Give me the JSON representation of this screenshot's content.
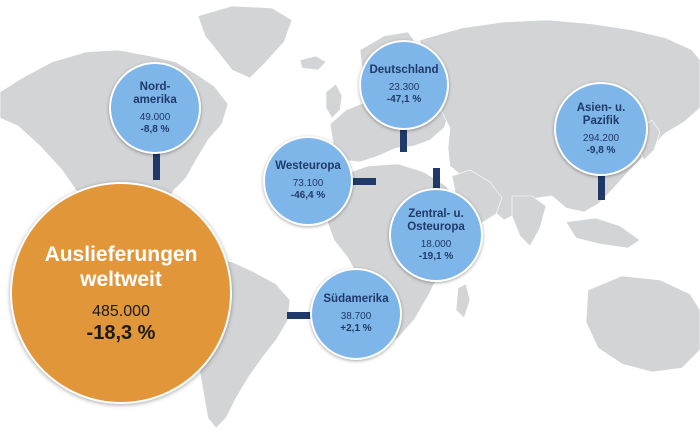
{
  "total": {
    "title": "Auslieferungen weltweit",
    "value": "485.000",
    "change": "-18,3 %"
  },
  "regions": [
    {
      "id": "nordamerika",
      "name": "Nord-\namerika",
      "value": "49.000",
      "change": "-8,8 %"
    },
    {
      "id": "deutschland",
      "name": "Deutschland",
      "value": "23.300",
      "change": "-47,1 %"
    },
    {
      "id": "asien-pazifik",
      "name": "Asien- u.\nPazifik",
      "value": "294.200",
      "change": "-9,8 %"
    },
    {
      "id": "westeuropa",
      "name": "Westeuropa",
      "value": "73.100",
      "change": "-46,4 %"
    },
    {
      "id": "zentral-osteuropa",
      "name": "Zentral- u.\nOsteuropa",
      "value": "18.000",
      "change": "-19,1 %"
    },
    {
      "id": "suedamerika",
      "name": "Südamerika",
      "value": "38.700",
      "change": "+2,1 %"
    }
  ],
  "colors": {
    "bubble": "#7fb6ea",
    "total": "#e2963a",
    "connector": "#1f3a68",
    "text": "#1f3a68",
    "map": "#d3d4d6"
  }
}
